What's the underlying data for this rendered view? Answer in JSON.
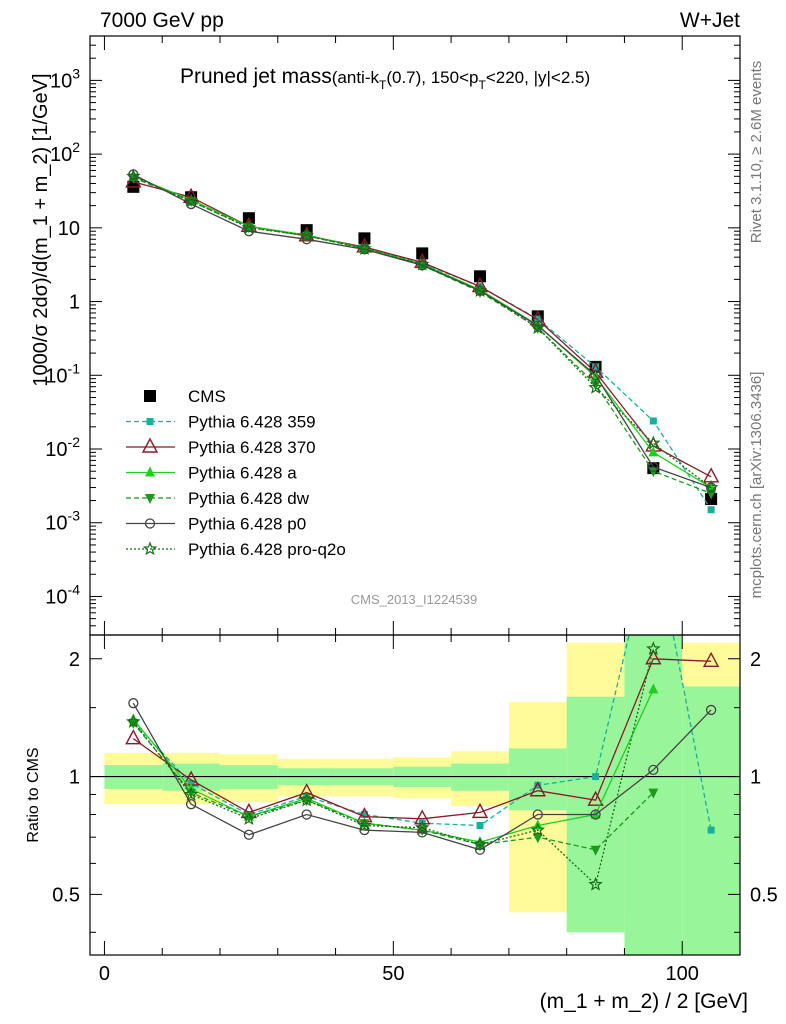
{
  "header": {
    "energy": "7000 GeV pp",
    "process": "W+Jet"
  },
  "title_main": "Pruned jet mass",
  "title_cut_parts": [
    "(anti-k",
    "T",
    "(0.7), 150<p",
    "T",
    "<220, |y|<2.5)"
  ],
  "rivet_label": "Rivet 3.1.10, ≥ 2.6M events",
  "site_label": "mcplots.cern.ch [arXiv:1306.3436]",
  "watermark": "CMS_2013_I1224539",
  "colors": {
    "data": "#000000",
    "p359": "#18b09a",
    "p370": "#8b1a28",
    "pa": "#1ed01e",
    "pdw": "#1c9a1c",
    "pp0": "#444444",
    "pproq2o": "#156e15",
    "band_inner": "#99f599",
    "band_outer": "#fffb99"
  },
  "chart_data": [
    {
      "type": "line",
      "panel": "main",
      "ylabel": "1000/σ 2dσ)/d(m_1 + m_2) [1/GeV]",
      "yscale": "log",
      "ylim": [
        3e-05,
        4000
      ],
      "xlim": [
        -2.5,
        110
      ],
      "y_tick_labels": [
        "10^3",
        "10^2",
        "10",
        "1",
        "10^-1",
        "10^-2",
        "10^-3",
        "10^-4"
      ],
      "legend_position": "lower-left",
      "x": [
        5,
        15,
        25,
        35,
        45,
        55,
        65,
        75,
        85,
        95,
        105
      ],
      "series": [
        {
          "name": "CMS",
          "key": "data",
          "style": "square",
          "values": [
            36,
            26,
            13.5,
            9.3,
            7.2,
            4.5,
            2.2,
            0.63,
            0.13,
            0.0055,
            0.0021
          ]
        },
        {
          "name": "Pythia 6.428 359",
          "key": "p359",
          "style": "smallsquare-dashed",
          "values": [
            48,
            23,
            10.2,
            7.8,
            5.4,
            3.3,
            1.6,
            0.58,
            0.13,
            0.024,
            0.0015
          ]
        },
        {
          "name": "Pythia 6.428 370",
          "key": "p370",
          "style": "triangle-open-solid",
          "values": [
            42,
            26,
            10.5,
            7.8,
            5.5,
            3.4,
            1.6,
            0.57,
            0.11,
            0.011,
            0.0042
          ]
        },
        {
          "name": "Pythia 6.428 a",
          "key": "pa",
          "style": "triangle-solid",
          "values": [
            50,
            24,
            10.5,
            8.0,
            5.3,
            3.2,
            1.45,
            0.48,
            0.095,
            0.009,
            0.003
          ]
        },
        {
          "name": "Pythia 6.428 dw",
          "key": "pdw",
          "style": "triangledown-dashed",
          "values": [
            48,
            23,
            10.2,
            7.8,
            5.2,
            3.1,
            1.35,
            0.44,
            0.075,
            0.005,
            0.0025
          ]
        },
        {
          "name": "Pythia 6.428 p0",
          "key": "pp0",
          "style": "circle-open-solid",
          "values": [
            53,
            21,
            9.0,
            7.0,
            5.1,
            3.1,
            1.4,
            0.47,
            0.1,
            0.0057,
            0.003
          ]
        },
        {
          "name": "Pythia 6.428 pro-q2o",
          "key": "pproq2o",
          "style": "star-dotted",
          "values": [
            50,
            23,
            10.0,
            7.9,
            5.2,
            3.2,
            1.4,
            0.44,
            0.068,
            0.012,
            0.003
          ]
        }
      ]
    },
    {
      "type": "line",
      "panel": "ratio",
      "ylabel": "Ratio to CMS",
      "xlabel": "(m_1 + m_2) / 2 [GeV]",
      "ylim": [
        0.35,
        2.3
      ],
      "xlim": [
        -2.5,
        110
      ],
      "x_ticks": [
        0,
        50,
        100
      ],
      "y_ticks": [
        0.5,
        1,
        2
      ],
      "bands": {
        "edges": [
          0,
          10,
          20,
          30,
          40,
          50,
          60,
          70,
          80,
          90,
          100,
          110
        ],
        "inner": [
          [
            0.93,
            1.07
          ],
          [
            0.92,
            1.08
          ],
          [
            0.93,
            1.07
          ],
          [
            0.95,
            1.05
          ],
          [
            0.95,
            1.05
          ],
          [
            0.94,
            1.06
          ],
          [
            0.92,
            1.08
          ],
          [
            0.82,
            1.18
          ],
          [
            0.4,
            1.6
          ],
          [
            0.35,
            2.3
          ],
          [
            0.35,
            1.7
          ]
        ],
        "outer": [
          [
            0.85,
            1.15
          ],
          [
            0.85,
            1.15
          ],
          [
            0.86,
            1.14
          ],
          [
            0.89,
            1.11
          ],
          [
            0.89,
            1.11
          ],
          [
            0.88,
            1.12
          ],
          [
            0.84,
            1.16
          ],
          [
            0.45,
            1.55
          ],
          [
            0.45,
            2.2
          ],
          [
            0.35,
            2.3
          ],
          [
            0.35,
            2.2
          ]
        ]
      },
      "x": [
        5,
        15,
        25,
        35,
        45,
        55,
        65,
        75,
        85,
        95,
        105
      ],
      "series": [
        {
          "name": "Pythia 6.428 359",
          "key": "p359",
          "values": [
            1.38,
            0.96,
            0.8,
            0.89,
            0.8,
            0.76,
            0.75,
            0.95,
            1.0,
            4.2,
            0.73
          ]
        },
        {
          "name": "Pythia 6.428 370",
          "key": "p370",
          "values": [
            1.25,
            0.98,
            0.81,
            0.91,
            0.79,
            0.78,
            0.81,
            0.92,
            0.87,
            2.0,
            1.97
          ]
        },
        {
          "name": "Pythia 6.428 a",
          "key": "pa",
          "values": [
            1.4,
            0.93,
            0.79,
            0.88,
            0.76,
            0.73,
            0.68,
            0.75,
            0.8,
            1.67,
            null
          ]
        },
        {
          "name": "Pythia 6.428 dw",
          "key": "pdw",
          "values": [
            1.37,
            0.91,
            0.79,
            0.87,
            0.76,
            0.73,
            0.67,
            0.7,
            0.65,
            0.91,
            null
          ]
        },
        {
          "name": "Pythia 6.428 p0",
          "key": "pp0",
          "values": [
            1.54,
            0.85,
            0.71,
            0.8,
            0.73,
            0.72,
            0.65,
            0.8,
            0.8,
            1.04,
            1.48
          ]
        },
        {
          "name": "Pythia 6.428 pro-q2o",
          "key": "pproq2o",
          "values": [
            1.38,
            0.9,
            0.78,
            0.87,
            0.75,
            0.74,
            0.67,
            0.73,
            0.53,
            2.12,
            null
          ]
        }
      ]
    }
  ]
}
